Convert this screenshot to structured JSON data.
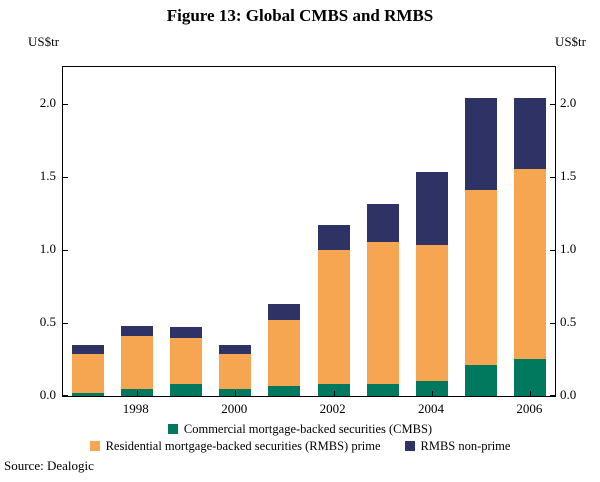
{
  "title": "Figure 13: Global CMBS and RMBS",
  "y_axis_unit_left": "US$tr",
  "y_axis_unit_right": "US$tr",
  "source": "Source: Dealogic",
  "chart_data": {
    "type": "bar",
    "stacked": true,
    "title": "Figure 13: Global CMBS and RMBS",
    "ylabel": "US$tr",
    "xlabel": "",
    "grid": false,
    "legend_position": "bottom",
    "categories": [
      1997,
      1998,
      1999,
      2000,
      2001,
      2002,
      2003,
      2004,
      2005,
      2006
    ],
    "x_tick_labels": [
      "1998",
      "2000",
      "2002",
      "2004",
      "2006"
    ],
    "yticks": [
      0.0,
      0.5,
      1.0,
      1.5,
      2.0
    ],
    "ylim": [
      0,
      2.25
    ],
    "series": [
      {
        "name": "Commercial mortgage-backed securities (CMBS)",
        "color": "#00795f",
        "values": [
          0.02,
          0.05,
          0.08,
          0.05,
          0.07,
          0.08,
          0.08,
          0.1,
          0.21,
          0.25
        ]
      },
      {
        "name": "Residential mortgage-backed securities (RMBS) prime",
        "color": "#f6a550",
        "values": [
          0.27,
          0.36,
          0.32,
          0.24,
          0.45,
          0.92,
          0.97,
          0.93,
          1.2,
          1.3
        ]
      },
      {
        "name": "RMBS non-prime",
        "color": "#2e3264",
        "values": [
          0.06,
          0.07,
          0.07,
          0.06,
          0.11,
          0.17,
          0.26,
          0.5,
          0.63,
          0.49
        ]
      }
    ],
    "totals": [
      0.35,
      0.48,
      0.47,
      0.35,
      0.63,
      1.17,
      1.31,
      1.53,
      2.04,
      2.04
    ]
  }
}
